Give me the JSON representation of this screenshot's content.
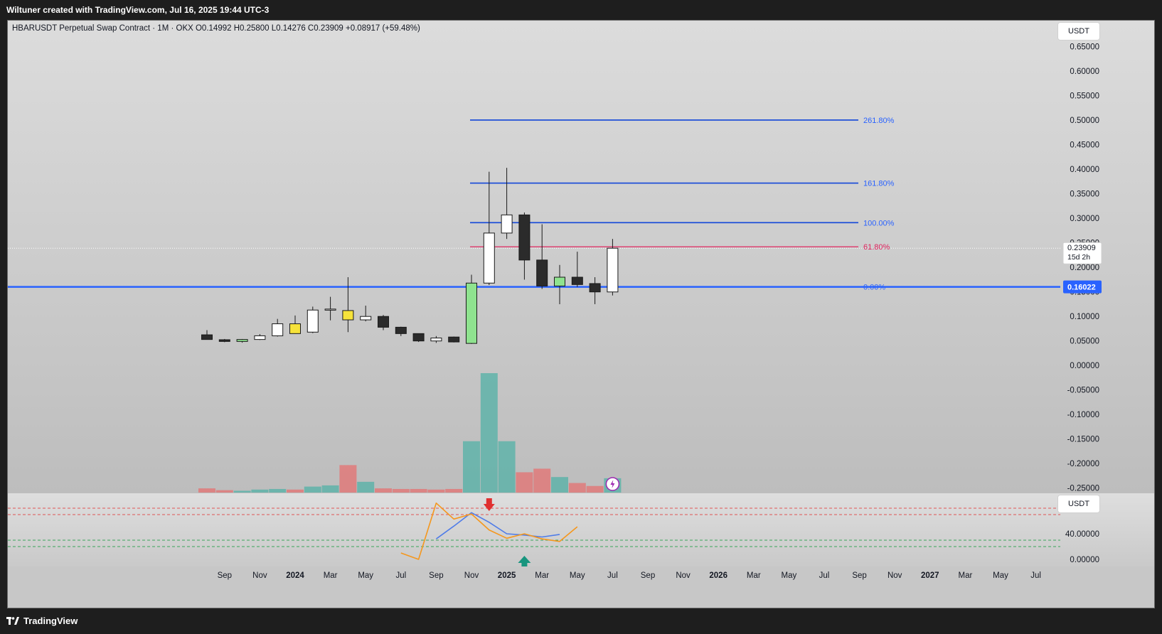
{
  "header": {
    "attribution": "Wiltuner created with TradingView.com, Jul 16, 2025 19:44 UTC-3"
  },
  "legend": {
    "text": "HBARUSDT Perpetual Swap Contract · 1M · OKX  O0.14992  H0.25800  L0.14276  C0.23909  +0.08917 (+59.48%)"
  },
  "units": {
    "price": "USDT",
    "indicator": "USDT"
  },
  "footer": {
    "brand": "TradingView"
  },
  "colors": {
    "bull": "#ffffff",
    "bear": "#2b2b2b",
    "bull_yellow": "#f6e33a",
    "bull_green": "#8fe38f",
    "fib_line": "#1e4fd8",
    "fib_label": "#2962ff",
    "fib_618": "#e0245e",
    "support": "#2962ff",
    "vol_up": "#5fb3a9",
    "vol_down": "#e07a7a",
    "osc_orange": "#f5971d",
    "osc_blue": "#4f7ce8"
  },
  "price_axis": [
    "0.65000",
    "0.60000",
    "0.55000",
    "0.50000",
    "0.45000",
    "0.40000",
    "0.35000",
    "0.30000",
    "0.25000",
    "0.20000",
    "0.15000",
    "0.10000",
    "0.05000",
    "0.00000",
    "-0.05000",
    "-0.10000",
    "-0.15000",
    "-0.20000",
    "-0.25000"
  ],
  "osc_axis": [
    "40.00000",
    "0.00000"
  ],
  "time_axis": [
    {
      "label": "Sep",
      "bold": false
    },
    {
      "label": "Nov",
      "bold": false
    },
    {
      "label": "2024",
      "bold": true
    },
    {
      "label": "Mar",
      "bold": false
    },
    {
      "label": "May",
      "bold": false
    },
    {
      "label": "Jul",
      "bold": false
    },
    {
      "label": "Sep",
      "bold": false
    },
    {
      "label": "Nov",
      "bold": false
    },
    {
      "label": "2025",
      "bold": true
    },
    {
      "label": "Mar",
      "bold": false
    },
    {
      "label": "May",
      "bold": false
    },
    {
      "label": "Jul",
      "bold": false
    },
    {
      "label": "Sep",
      "bold": false
    },
    {
      "label": "Nov",
      "bold": false
    },
    {
      "label": "2026",
      "bold": true
    },
    {
      "label": "Mar",
      "bold": false
    },
    {
      "label": "May",
      "bold": false
    },
    {
      "label": "Jul",
      "bold": false
    },
    {
      "label": "Sep",
      "bold": false
    },
    {
      "label": "Nov",
      "bold": false
    },
    {
      "label": "2027",
      "bold": true
    },
    {
      "label": "Mar",
      "bold": false
    },
    {
      "label": "May",
      "bold": false
    },
    {
      "label": "Jul",
      "bold": false
    }
  ],
  "fib_levels": [
    {
      "label": "261.80%",
      "price": 0.5005
    },
    {
      "label": "161.80%",
      "price": 0.3718
    },
    {
      "label": "100.00%",
      "price": 0.2912
    },
    {
      "label": "61.80%",
      "price": 0.242
    }
  ],
  "support": {
    "price": 0.16022,
    "label": "0.16022",
    "fib_label": "0.00%"
  },
  "current_price": {
    "price": 0.23909,
    "label": "0.23909",
    "countdown": "15d 2h"
  },
  "chart_data": {
    "type": "candlestick",
    "title": "HBARUSDT Perpetual Swap Contract · 1M · OKX",
    "ylim": [
      -0.265,
      0.67
    ],
    "candles": [
      {
        "m": "2023-08",
        "o": 0.0625,
        "h": 0.072,
        "l": 0.054,
        "c": 0.053,
        "style": "bear"
      },
      {
        "m": "2023-09",
        "o": 0.0525,
        "h": 0.054,
        "l": 0.0475,
        "c": 0.049,
        "style": "bear"
      },
      {
        "m": "2023-10",
        "o": 0.049,
        "h": 0.054,
        "l": 0.0465,
        "c": 0.053,
        "style": "green"
      },
      {
        "m": "2023-11",
        "o": 0.053,
        "h": 0.064,
        "l": 0.052,
        "c": 0.0605,
        "style": "bull"
      },
      {
        "m": "2023-12",
        "o": 0.0605,
        "h": 0.095,
        "l": 0.059,
        "c": 0.085,
        "style": "bull"
      },
      {
        "m": "2024-01",
        "o": 0.065,
        "h": 0.102,
        "l": 0.065,
        "c": 0.085,
        "style": "yellow"
      },
      {
        "m": "2024-02",
        "o": 0.068,
        "h": 0.12,
        "l": 0.066,
        "c": 0.113,
        "style": "bull"
      },
      {
        "m": "2024-03",
        "o": 0.113,
        "h": 0.14,
        "l": 0.092,
        "c": 0.115,
        "style": "bull"
      },
      {
        "m": "2024-04",
        "o": 0.093,
        "h": 0.18,
        "l": 0.068,
        "c": 0.112,
        "style": "yellow"
      },
      {
        "m": "2024-05",
        "o": 0.093,
        "h": 0.122,
        "l": 0.09,
        "c": 0.1,
        "style": "bull"
      },
      {
        "m": "2024-06",
        "o": 0.1,
        "h": 0.103,
        "l": 0.072,
        "c": 0.078,
        "style": "bear"
      },
      {
        "m": "2024-07",
        "o": 0.078,
        "h": 0.079,
        "l": 0.06,
        "c": 0.065,
        "style": "bear"
      },
      {
        "m": "2024-08",
        "o": 0.065,
        "h": 0.065,
        "l": 0.048,
        "c": 0.05,
        "style": "bear"
      },
      {
        "m": "2024-09",
        "o": 0.05,
        "h": 0.06,
        "l": 0.046,
        "c": 0.056,
        "style": "bull"
      },
      {
        "m": "2024-10",
        "o": 0.058,
        "h": 0.059,
        "l": 0.047,
        "c": 0.048,
        "style": "bear"
      },
      {
        "m": "2024-11",
        "o": 0.045,
        "h": 0.185,
        "l": 0.044,
        "c": 0.168,
        "style": "green"
      },
      {
        "m": "2024-12",
        "o": 0.168,
        "h": 0.395,
        "l": 0.164,
        "c": 0.27,
        "style": "bull"
      },
      {
        "m": "2025-01",
        "o": 0.27,
        "h": 0.403,
        "l": 0.258,
        "c": 0.307,
        "style": "bull"
      },
      {
        "m": "2025-02",
        "o": 0.307,
        "h": 0.312,
        "l": 0.175,
        "c": 0.215,
        "style": "bear"
      },
      {
        "m": "2025-03",
        "o": 0.215,
        "h": 0.288,
        "l": 0.156,
        "c": 0.162,
        "style": "bear"
      },
      {
        "m": "2025-04",
        "o": 0.162,
        "h": 0.205,
        "l": 0.125,
        "c": 0.18,
        "style": "green"
      },
      {
        "m": "2025-05",
        "o": 0.18,
        "h": 0.232,
        "l": 0.16,
        "c": 0.165,
        "style": "bear"
      },
      {
        "m": "2025-06",
        "o": 0.167,
        "h": 0.18,
        "l": 0.125,
        "c": 0.15,
        "style": "bear"
      },
      {
        "m": "2025-07",
        "o": 0.14992,
        "h": 0.258,
        "l": 0.14276,
        "c": 0.23909,
        "style": "bull"
      }
    ],
    "volume": [
      {
        "v": 0.035,
        "dir": "down"
      },
      {
        "v": 0.02,
        "dir": "down"
      },
      {
        "v": 0.015,
        "dir": "up"
      },
      {
        "v": 0.025,
        "dir": "up"
      },
      {
        "v": 0.03,
        "dir": "up"
      },
      {
        "v": 0.025,
        "dir": "down"
      },
      {
        "v": 0.05,
        "dir": "up"
      },
      {
        "v": 0.06,
        "dir": "up"
      },
      {
        "v": 0.23,
        "dir": "down"
      },
      {
        "v": 0.09,
        "dir": "up"
      },
      {
        "v": 0.035,
        "dir": "down"
      },
      {
        "v": 0.03,
        "dir": "down"
      },
      {
        "v": 0.03,
        "dir": "down"
      },
      {
        "v": 0.025,
        "dir": "down"
      },
      {
        "v": 0.03,
        "dir": "down"
      },
      {
        "v": 0.43,
        "dir": "up"
      },
      {
        "v": 1.0,
        "dir": "up"
      },
      {
        "v": 0.43,
        "dir": "up"
      },
      {
        "v": 0.17,
        "dir": "down"
      },
      {
        "v": 0.2,
        "dir": "down"
      },
      {
        "v": 0.13,
        "dir": "up"
      },
      {
        "v": 0.08,
        "dir": "down"
      },
      {
        "v": 0.055,
        "dir": "down"
      },
      {
        "v": 0.12,
        "dir": "up"
      }
    ],
    "oscillator": {
      "ylim": [
        -10,
        98
      ],
      "orange": [
        {
          "i": 11.0,
          "v": 10
        },
        {
          "i": 12.0,
          "v": 0
        },
        {
          "i": 13.0,
          "v": 88
        },
        {
          "i": 14.0,
          "v": 63
        },
        {
          "i": 15.0,
          "v": 71
        },
        {
          "i": 16.0,
          "v": 46
        },
        {
          "i": 17.0,
          "v": 33
        },
        {
          "i": 18.0,
          "v": 40
        },
        {
          "i": 19.0,
          "v": 32
        },
        {
          "i": 20.0,
          "v": 28
        },
        {
          "i": 21.0,
          "v": 51
        }
      ],
      "blue": [
        {
          "i": 13.0,
          "v": 32
        },
        {
          "i": 14.0,
          "v": 52
        },
        {
          "i": 15.0,
          "v": 73
        },
        {
          "i": 16.0,
          "v": 58
        },
        {
          "i": 17.0,
          "v": 40
        },
        {
          "i": 18.0,
          "v": 38
        },
        {
          "i": 19.0,
          "v": 35
        },
        {
          "i": 20.0,
          "v": 39
        }
      ],
      "overbought": [
        80,
        70
      ],
      "oversold": [
        30,
        20
      ],
      "signals": [
        {
          "i": 16.0,
          "type": "sell"
        },
        {
          "i": 18.0,
          "type": "buy"
        }
      ]
    }
  }
}
